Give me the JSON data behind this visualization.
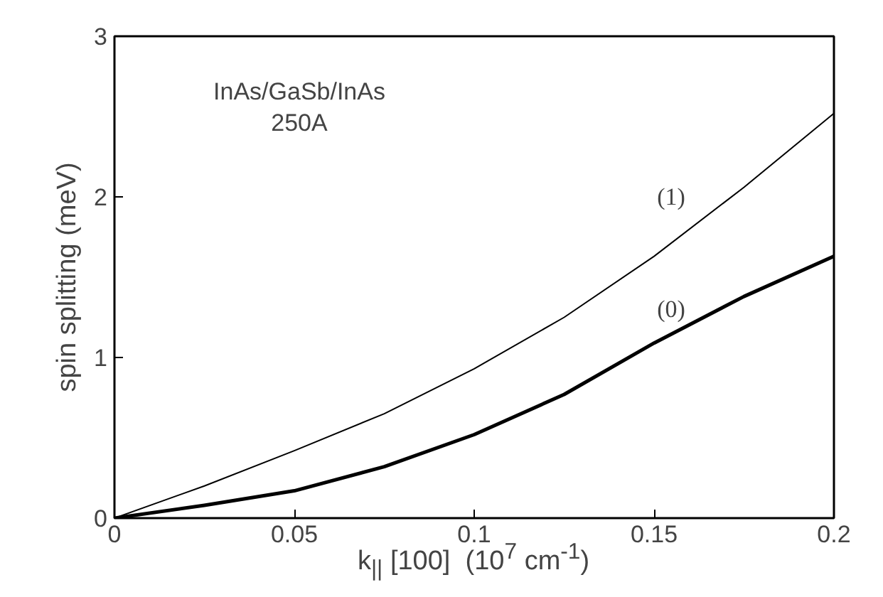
{
  "chart_data": {
    "type": "line",
    "xlabel": "k$_{||}$ [100]  (10$^{7}$ cm$^{-1}$)",
    "ylabel": "spin splitting (meV)",
    "x": [
      0,
      0.025,
      0.05,
      0.075,
      0.1,
      0.125,
      0.15,
      0.175,
      0.2
    ],
    "series": [
      {
        "name": "(1)",
        "color": "#000000",
        "values": [
          0,
          0.2,
          0.42,
          0.65,
          0.93,
          1.25,
          1.63,
          2.06,
          2.52
        ]
      },
      {
        "name": "(0)",
        "color": "#000000",
        "values": [
          0,
          0.08,
          0.17,
          0.32,
          0.52,
          0.77,
          1.09,
          1.38,
          1.63
        ]
      }
    ],
    "annotations": [
      "InAs/GaSb/InAs",
      "250A"
    ],
    "xlim": [
      0,
      0.2
    ],
    "ylim": [
      0,
      3
    ],
    "xticks": [
      0,
      0.05,
      0.1,
      0.15,
      0.2
    ],
    "yticks": [
      0,
      1,
      2,
      3
    ],
    "grid": false,
    "marker": "none",
    "line_style": "solid"
  }
}
